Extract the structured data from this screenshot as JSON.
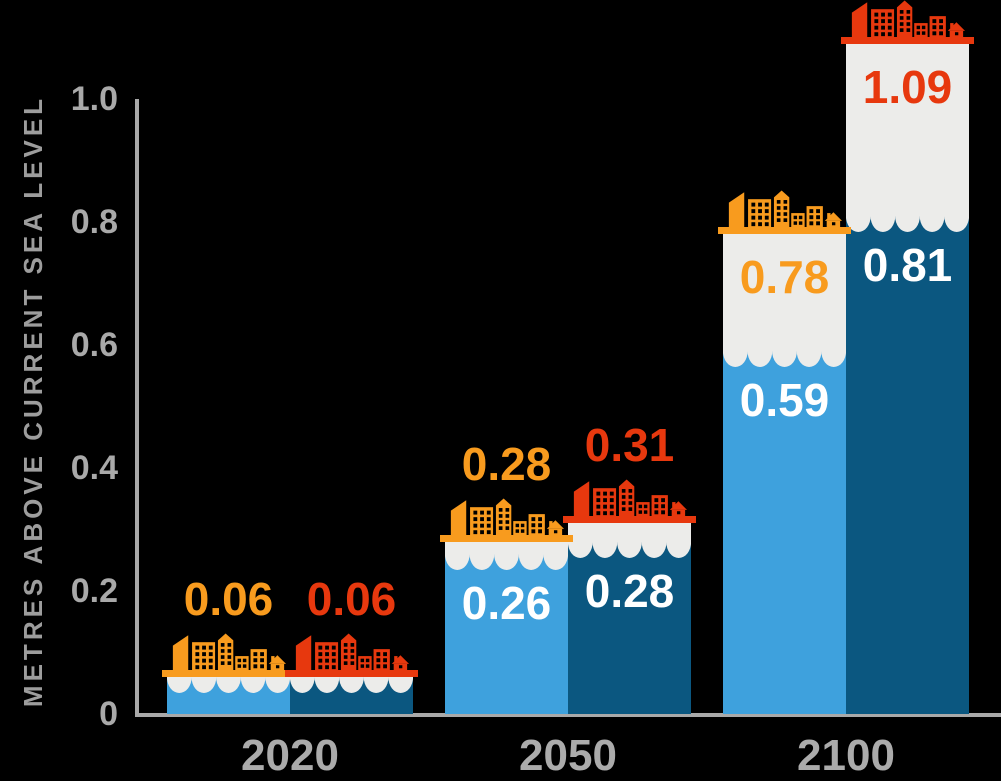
{
  "background": "#000000",
  "colors": {
    "axis": "#a9a9a9",
    "tick_label": "#a9a9a9",
    "year_label": "#ababab",
    "axis_title": "#9d9d9d",
    "foam_white": "#ececea",
    "on_bar_label": "#ffffff",
    "light_blue": "#3ea1dd",
    "dark_blue": "#0b5780",
    "orange": "#f89b1e",
    "red": "#e7380e"
  },
  "chart_data": {
    "type": "bar",
    "title": "",
    "ylabel": "METRES ABOVE CURRENT SEA LEVEL",
    "xlabel": "",
    "ylim": [
      0,
      1.0
    ],
    "grid": false,
    "legend": "none",
    "yticks": [
      {
        "label": "1.0",
        "value": 1.0
      },
      {
        "label": "0.8",
        "value": 0.8
      },
      {
        "label": "0.6",
        "value": 0.6
      },
      {
        "label": "0.4",
        "value": 0.4
      },
      {
        "label": "0.2",
        "value": 0.2
      },
      {
        "label": "0",
        "value": 0.0
      }
    ],
    "categories": [
      "2020",
      "2050",
      "2100"
    ],
    "series": [
      {
        "name": "orange-series",
        "bar_color": "#3ea1dd",
        "accent_color": "#f89b1e",
        "icon": "city-skyline-icon",
        "lower_values": [
          0.06,
          0.26,
          0.59
        ],
        "upper_values": [
          0.06,
          0.28,
          0.78
        ],
        "on_bar_labels": [
          null,
          "0.26",
          "0.59"
        ],
        "peak_labels": [
          "0.06",
          "0.28",
          "0.78"
        ]
      },
      {
        "name": "red-series",
        "bar_color": "#0b5780",
        "accent_color": "#e7380e",
        "icon": "city-skyline-icon",
        "lower_values": [
          0.06,
          0.28,
          0.81
        ],
        "upper_values": [
          0.06,
          0.31,
          1.09
        ],
        "on_bar_labels": [
          null,
          "0.28",
          "0.81"
        ],
        "peak_labels": [
          "0.06",
          "0.31",
          "1.09"
        ]
      }
    ]
  }
}
